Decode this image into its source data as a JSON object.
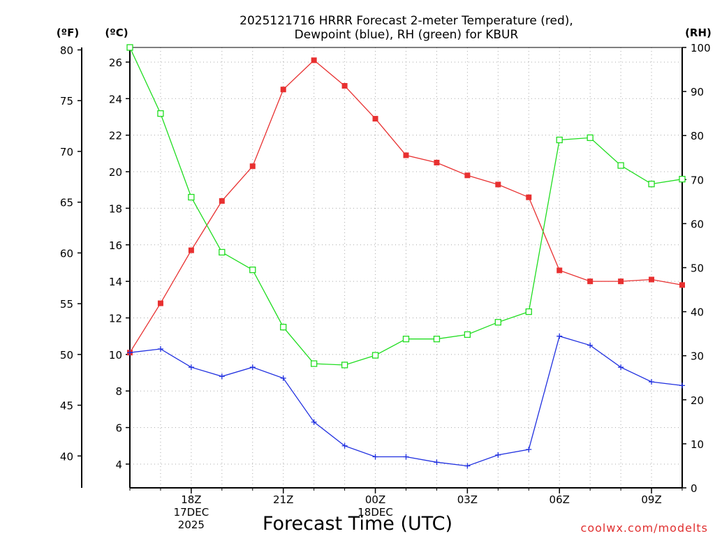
{
  "chart_data": {
    "type": "line",
    "title_line1": "2025121716 HRRR Forecast 2-meter Temperature (red),",
    "title_line2": "Dewpoint (blue), RH (green) for KBUR",
    "xlabel": "Forecast Time (UTC)",
    "credit": "coolwx.com/modelts",
    "units": {
      "fahrenheit": "(ºF)",
      "celsius": "(ºC)",
      "rh": "(RH)"
    },
    "x_hours": [
      16,
      17,
      18,
      19,
      20,
      21,
      22,
      23,
      24,
      25,
      26,
      27,
      28,
      29,
      30,
      31,
      32,
      33,
      34
    ],
    "x_range": [
      16,
      34
    ],
    "x_ticks": [
      {
        "hour": 18,
        "lines": [
          "18Z",
          "17DEC",
          "2025"
        ]
      },
      {
        "hour": 21,
        "lines": [
          "21Z"
        ]
      },
      {
        "hour": 24,
        "lines": [
          "00Z",
          "18DEC"
        ]
      },
      {
        "hour": 27,
        "lines": [
          "03Z"
        ]
      },
      {
        "hour": 30,
        "lines": [
          "06Z"
        ]
      },
      {
        "hour": 33,
        "lines": [
          "09Z"
        ]
      }
    ],
    "celsius_axis": {
      "range": [
        2.7,
        26.8
      ],
      "ticks": [
        4,
        6,
        8,
        10,
        12,
        14,
        16,
        18,
        20,
        22,
        24,
        26
      ]
    },
    "fahrenheit_axis": {
      "ticks": [
        40,
        45,
        50,
        55,
        60,
        65,
        70,
        75,
        80
      ]
    },
    "rh_axis": {
      "range": [
        0,
        100
      ],
      "ticks": [
        0,
        10,
        20,
        30,
        40,
        50,
        60,
        70,
        80,
        90,
        100
      ]
    },
    "series": [
      {
        "name": "Temperature",
        "units": "C",
        "color": "#e83030",
        "marker": "filled-square",
        "values": [
          10.1,
          12.8,
          15.7,
          18.4,
          20.3,
          24.5,
          26.1,
          24.7,
          22.9,
          20.9,
          20.5,
          19.8,
          19.3,
          18.6,
          14.6,
          14.0,
          14.0,
          14.1,
          13.8
        ]
      },
      {
        "name": "Dewpoint",
        "units": "C",
        "color": "#2030e0",
        "marker": "plus",
        "values": [
          10.1,
          10.3,
          9.3,
          8.8,
          9.3,
          8.7,
          6.3,
          5.0,
          4.4,
          4.4,
          4.1,
          3.9,
          4.5,
          4.8,
          11.0,
          10.5,
          9.3,
          8.5,
          8.3
        ]
      },
      {
        "name": "RH",
        "units": "%",
        "color": "#20dd20",
        "marker": "open-square",
        "values": [
          100,
          85,
          66,
          53.5,
          49.5,
          36.5,
          28.2,
          27.9,
          30.1,
          33.8,
          33.8,
          34.8,
          37.6,
          40.0,
          79.0,
          79.5,
          73.2,
          69.0,
          70.1
        ]
      }
    ]
  }
}
